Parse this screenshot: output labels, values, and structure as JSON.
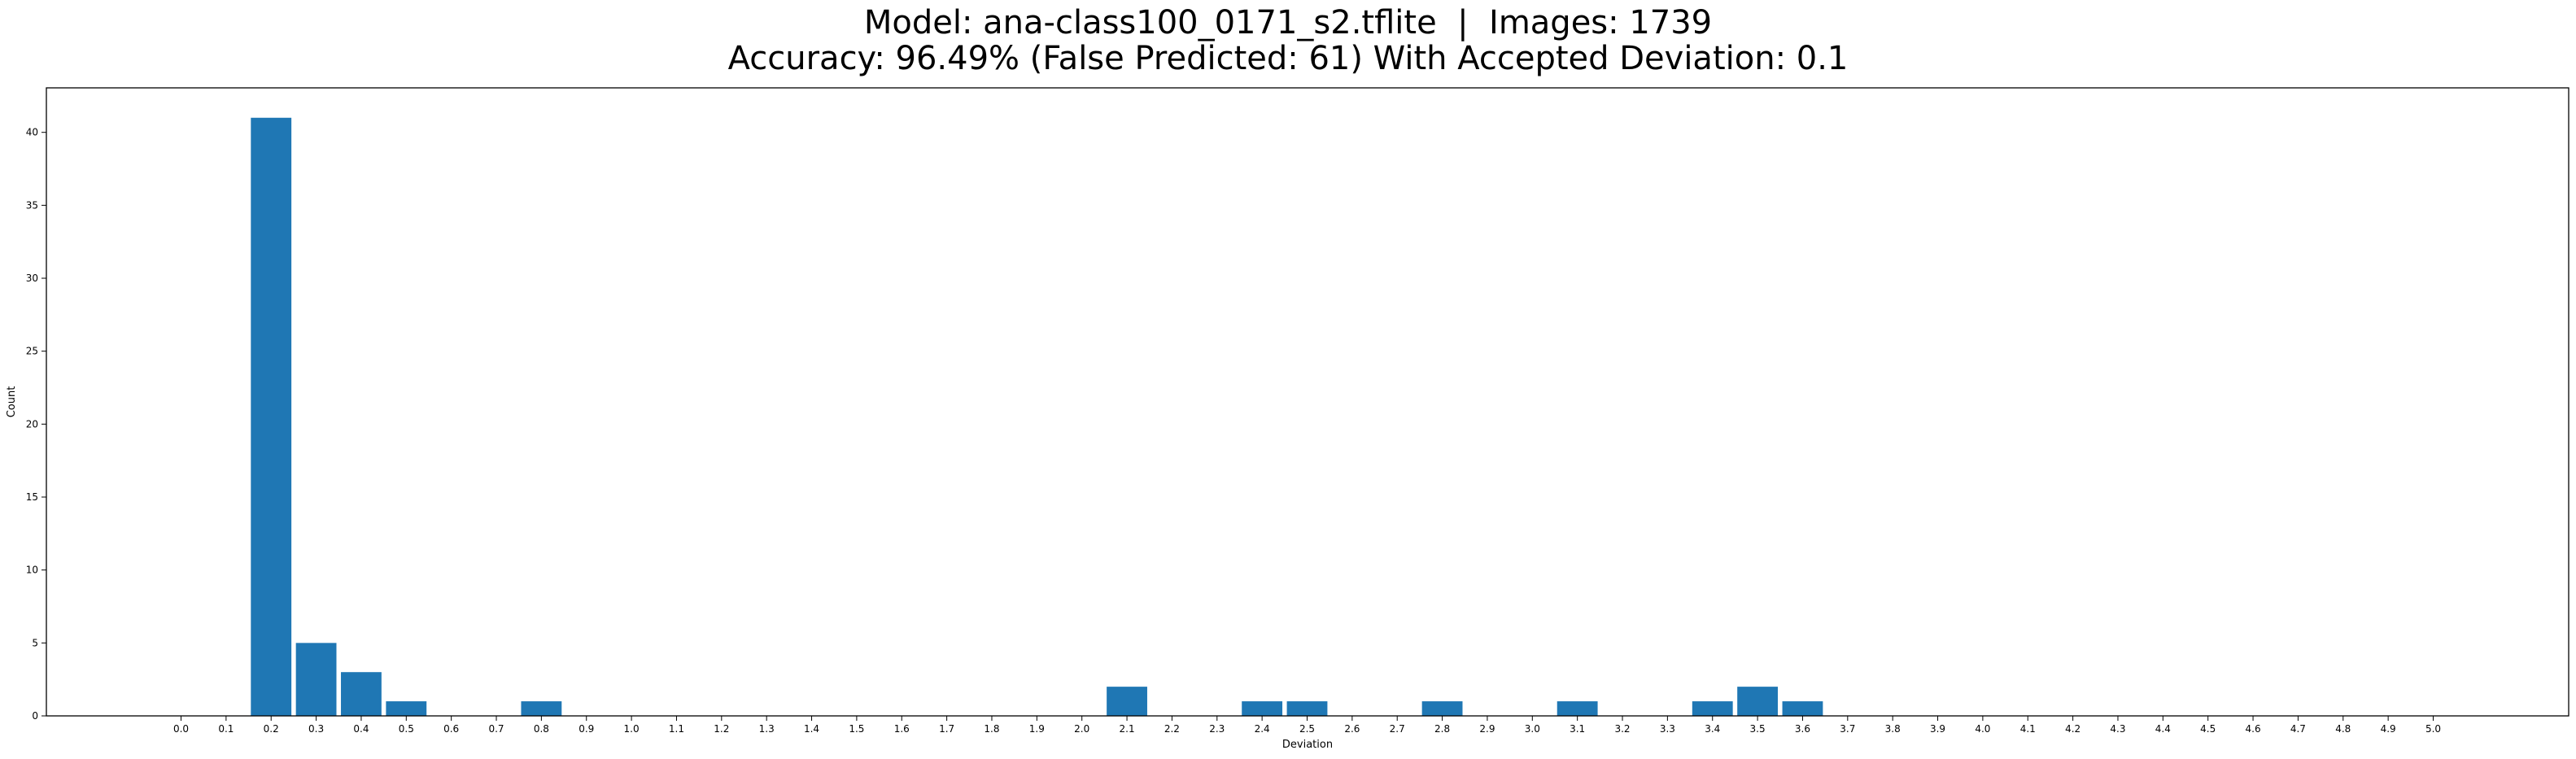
{
  "chart_data": {
    "type": "bar",
    "title_lines": [
      "Model: ana-class100_0171_s2.tflite  |  Images: 1739",
      "Accuracy: 96.49% (False Predicted: 61) With Accepted Deviation: 0.1"
    ],
    "xlabel": "Deviation",
    "ylabel": "Count",
    "categories": [
      "0.0",
      "0.1",
      "0.2",
      "0.3",
      "0.4",
      "0.5",
      "0.6",
      "0.7",
      "0.8",
      "0.9",
      "1.0",
      "1.1",
      "1.2",
      "1.3",
      "1.4",
      "1.5",
      "1.6",
      "1.7",
      "1.8",
      "1.9",
      "2.0",
      "2.1",
      "2.2",
      "2.3",
      "2.4",
      "2.5",
      "2.6",
      "2.7",
      "2.8",
      "2.9",
      "3.0",
      "3.1",
      "3.2",
      "3.3",
      "3.4",
      "3.5",
      "3.6",
      "3.7",
      "3.8",
      "3.9",
      "4.0",
      "4.1",
      "4.2",
      "4.3",
      "4.4",
      "4.5",
      "4.6",
      "4.7",
      "4.8",
      "4.9",
      "5.0"
    ],
    "values": [
      0,
      0,
      41,
      5,
      3,
      1,
      0,
      0,
      1,
      0,
      0,
      0,
      0,
      0,
      0,
      0,
      0,
      0,
      0,
      0,
      0,
      2,
      0,
      0,
      1,
      1,
      0,
      0,
      1,
      0,
      0,
      1,
      0,
      0,
      1,
      2,
      1,
      0,
      0,
      0,
      0,
      0,
      0,
      0,
      0,
      0,
      0,
      0,
      0,
      0,
      0
    ],
    "ylim": [
      0,
      43.05
    ],
    "yticks": [
      0,
      5,
      10,
      15,
      20,
      25,
      30,
      35,
      40
    ],
    "grid": false,
    "legend": "none",
    "bar_color": "#1f77b4"
  }
}
